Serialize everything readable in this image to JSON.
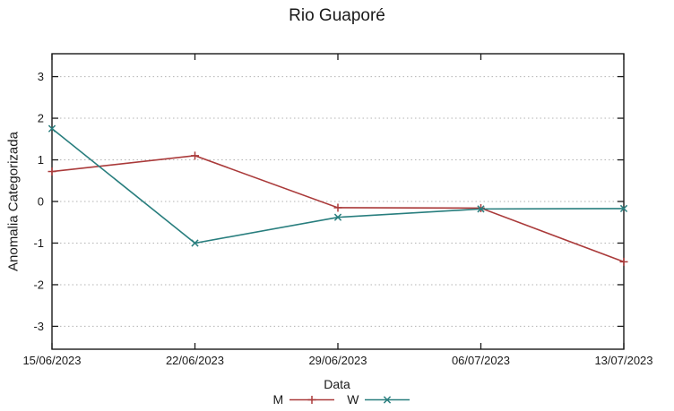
{
  "window": {
    "background": "#ffffff"
  },
  "chart_data": {
    "type": "line",
    "title": "Rio Guaporé",
    "xlabel": "Data",
    "ylabel": "Anomalia Categorizada",
    "categories": [
      "15/06/2023",
      "22/06/2023",
      "29/06/2023",
      "06/07/2023",
      "13/07/2023"
    ],
    "y_ticks": [
      3,
      2,
      1,
      0,
      -1,
      -2,
      -3
    ],
    "ylim": [
      -3.55,
      3.55
    ],
    "grid": "horizontal-dotted",
    "legend_position": "bottom-center",
    "axis_color": "#1a1a1a",
    "grid_color": "#b3b3b3",
    "series": [
      {
        "name": "M",
        "color": "#aa3a3a",
        "marker": "plus",
        "values": [
          0.72,
          1.1,
          -0.15,
          -0.16,
          -1.45
        ]
      },
      {
        "name": "W",
        "color": "#287e7e",
        "marker": "cross",
        "values": [
          1.75,
          -1.0,
          -0.38,
          -0.18,
          -0.17
        ]
      }
    ]
  }
}
